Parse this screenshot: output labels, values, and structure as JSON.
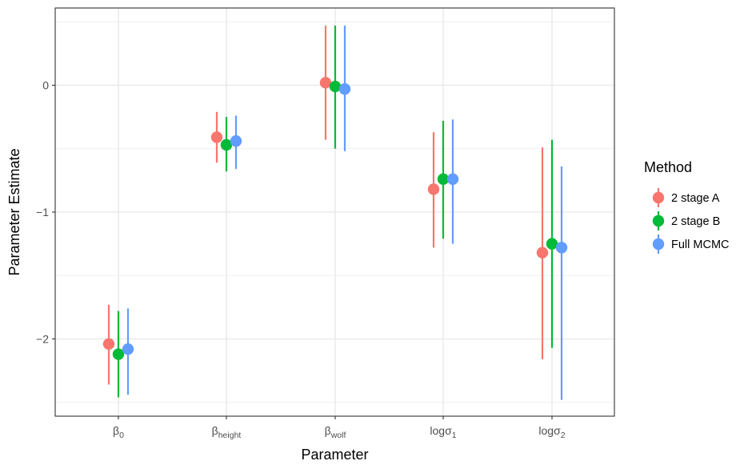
{
  "chart_data": {
    "type": "scatter",
    "subtype": "point-range",
    "xlabel": "Parameter",
    "ylabel": "Parameter Estimate",
    "ylim": [
      -2.55,
      0.5
    ],
    "yticks": [
      0,
      -1,
      -2
    ],
    "ytick_labels": [
      "0",
      "−1",
      "−2"
    ],
    "grid": true,
    "categories": [
      {
        "base": "β",
        "sub": "0"
      },
      {
        "base": "β",
        "sub": "height"
      },
      {
        "base": "β",
        "sub": "wolf"
      },
      {
        "base": "logσ",
        "sub": "1"
      },
      {
        "base": "logσ",
        "sub": "2"
      }
    ],
    "legend": {
      "title": "Method",
      "position": "right"
    },
    "series": [
      {
        "name": "2 stage A",
        "color": "#F8766D",
        "estimates": [
          -2.04,
          -0.41,
          0.02,
          -0.82,
          -1.32
        ],
        "lower": [
          -2.36,
          -0.61,
          -0.43,
          -1.28,
          -2.16
        ],
        "upper": [
          -1.73,
          -0.21,
          0.47,
          -0.37,
          -0.49
        ]
      },
      {
        "name": "2 stage B",
        "color": "#00BA38",
        "estimates": [
          -2.12,
          -0.47,
          -0.01,
          -0.74,
          -1.25
        ],
        "lower": [
          -2.46,
          -0.68,
          -0.5,
          -1.21,
          -2.07
        ],
        "upper": [
          -1.78,
          -0.25,
          0.47,
          -0.28,
          -0.43
        ]
      },
      {
        "name": "Full MCMC",
        "color": "#619CFF",
        "estimates": [
          -2.08,
          -0.44,
          -0.03,
          -0.74,
          -1.28
        ],
        "lower": [
          -2.44,
          -0.66,
          -0.52,
          -1.25,
          -2.48
        ],
        "upper": [
          -1.76,
          -0.24,
          0.47,
          -0.27,
          -0.64
        ]
      }
    ]
  }
}
